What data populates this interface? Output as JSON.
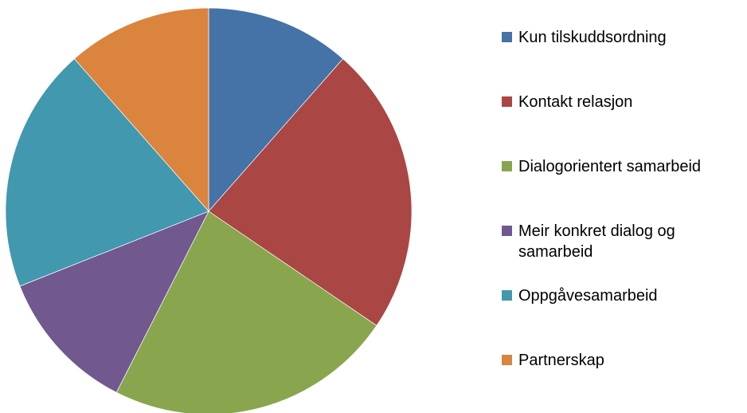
{
  "chart_data": {
    "type": "pie",
    "categories": [
      "Kun tilskuddsordning",
      "Kontakt relasjon",
      "Dialogorientert samarbeid",
      "Meir konkret dialog og samarbeid",
      "Oppgåvesamarbeid",
      "Partnerskap"
    ],
    "values": [
      11.5,
      23,
      23,
      11.5,
      19.5,
      11.5
    ],
    "colors": [
      "#4572a7",
      "#aa4643",
      "#89a54e",
      "#71588f",
      "#4198af",
      "#db843d"
    ],
    "legend": "right"
  }
}
